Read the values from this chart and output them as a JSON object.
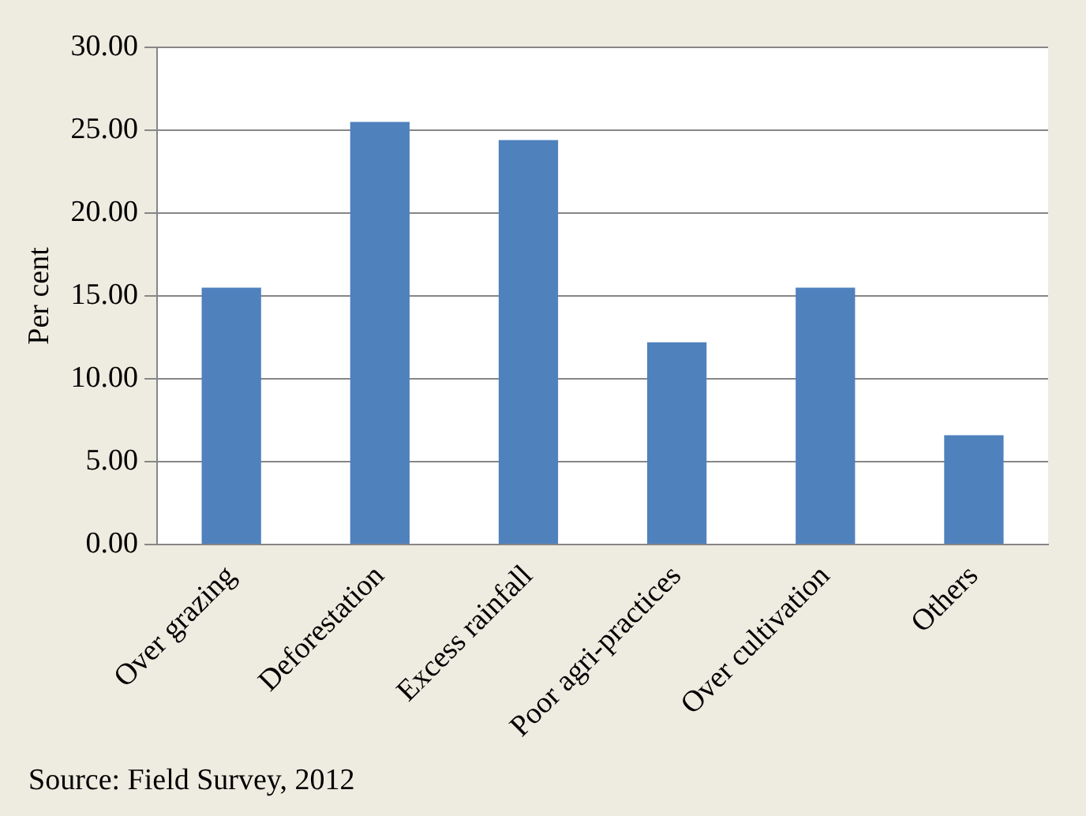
{
  "chart_data": {
    "type": "bar",
    "ylabel": "Per cent",
    "categories": [
      "Over grazing",
      "Deforestation",
      "Excess rainfall",
      "Poor agri-practices",
      "Over cultivation",
      "Others"
    ],
    "values": [
      15.5,
      25.5,
      24.4,
      12.2,
      15.5,
      6.6
    ],
    "color": "#4f81bd",
    "ylim": [
      0,
      30
    ],
    "yticks": [
      {
        "value": 0,
        "label": "0.00"
      },
      {
        "value": 5,
        "label": "5.00"
      },
      {
        "value": 10,
        "label": "10.00"
      },
      {
        "value": 15,
        "label": "15.00"
      },
      {
        "value": 20,
        "label": "20.00"
      },
      {
        "value": 25,
        "label": "25.00"
      },
      {
        "value": 30,
        "label": "30.00"
      }
    ],
    "grid": "y",
    "legend": false,
    "annotations": [
      "Source: Field Survey, 2012"
    ]
  }
}
